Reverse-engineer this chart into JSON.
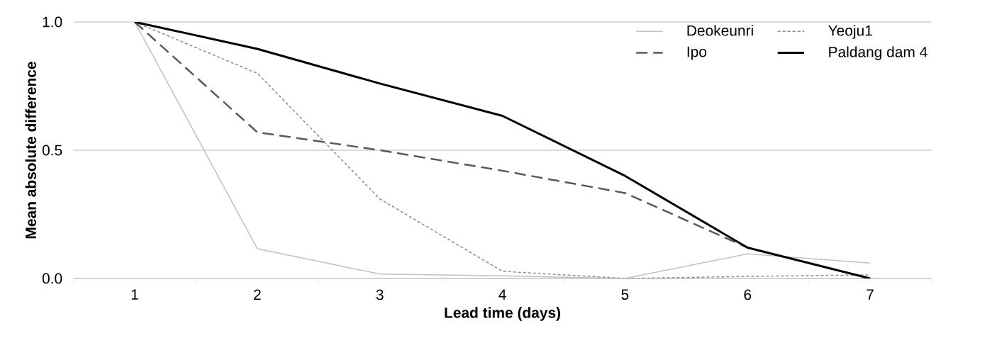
{
  "chart_data": {
    "type": "line",
    "xlabel": "Lead time (days)",
    "ylabel": "Mean absolute difference",
    "categories": [
      "1",
      "2",
      "3",
      "4",
      "5",
      "6",
      "7"
    ],
    "ylim": [
      0,
      1.0
    ],
    "yticks": [
      {
        "value": 0,
        "label": "0.0"
      },
      {
        "value": 0.5,
        "label": "0.5"
      },
      {
        "value": 1.0,
        "label": "1.0"
      }
    ],
    "grid": "y",
    "legend": "top right",
    "marker": "none",
    "series": [
      {
        "name": "Deokeunri",
        "color": "#c0c0c0",
        "line_style": "solid",
        "values": [
          1.0,
          0.116,
          0.017,
          0.01,
          0.0,
          0.096,
          0.06
        ]
      },
      {
        "name": "Yeoju1",
        "color": "#8c8c8c",
        "line_style": "dotted",
        "values": [
          1.0,
          0.8,
          0.31,
          0.028,
          0.0,
          0.008,
          0.014
        ]
      },
      {
        "name": "Ipo",
        "color": "#595959",
        "line_style": "dashed",
        "values": [
          1.0,
          0.57,
          0.5,
          0.42,
          0.333,
          0.12,
          0.0
        ]
      },
      {
        "name": "Paldang dam 4",
        "color": "#000000",
        "line_style": "solid",
        "values": [
          1.0,
          0.895,
          0.76,
          0.634,
          0.4,
          0.12,
          0.0
        ]
      }
    ]
  }
}
